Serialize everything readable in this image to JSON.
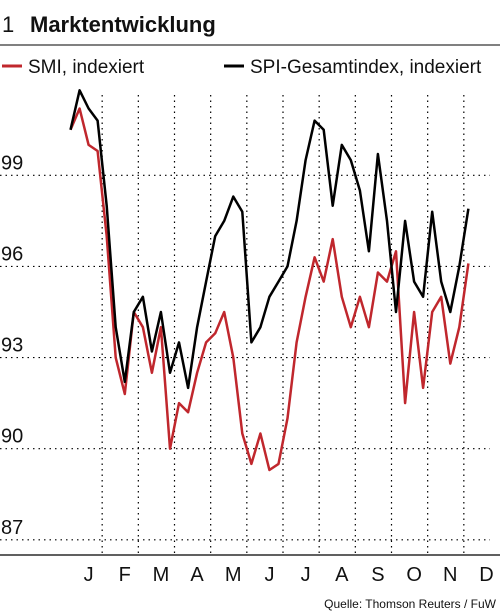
{
  "chart_data": {
    "type": "line",
    "number": "1",
    "title": "Marktentwicklung",
    "source": "Quelle: Thomson Reuters / FuW",
    "categories": [
      null,
      null,
      "J",
      null,
      null,
      null,
      "F",
      null,
      null,
      null,
      "M",
      null,
      null,
      null,
      "A",
      null,
      null,
      null,
      "M",
      null,
      null,
      null,
      "J",
      null,
      null,
      null,
      "J",
      null,
      null,
      null,
      "A",
      null,
      null,
      null,
      "S",
      null,
      null,
      null,
      "O",
      null,
      null,
      null,
      "N",
      null,
      null,
      null,
      "D",
      null
    ],
    "series": [
      {
        "name": "SMI, indexiert",
        "color": "#c0272d",
        "values": [
          100.5,
          101.2,
          100,
          99.8,
          97,
          93,
          91.8,
          94.5,
          94,
          92.5,
          94,
          90,
          91.5,
          91.2,
          92.5,
          93.5,
          93.8,
          94.5,
          93,
          90.5,
          89.5,
          90.5,
          89.3,
          89.5,
          91,
          93.5,
          95,
          96.3,
          95.5,
          96.9,
          95,
          94,
          95,
          94,
          95.8,
          95.5,
          96.5,
          91.5,
          94.5,
          92,
          94.5,
          95,
          92.8,
          94,
          96.1,
          null,
          null,
          null
        ]
      },
      {
        "name": "SPI-Gesamtindex, indexiert",
        "color": "#000000",
        "values": [
          100.5,
          101.8,
          101.2,
          100.8,
          98,
          94,
          92.2,
          94.5,
          95,
          93.2,
          94.5,
          92.5,
          93.5,
          92,
          94,
          95.5,
          97,
          97.5,
          98.3,
          97.8,
          93.5,
          94,
          95,
          95.5,
          96,
          97.5,
          99.5,
          100.8,
          100.5,
          98,
          100,
          99.5,
          98.5,
          96.5,
          99.7,
          97.5,
          94.5,
          97.5,
          95.5,
          95,
          97.8,
          95.5,
          94.5,
          96,
          97.9,
          null,
          null,
          null
        ]
      }
    ],
    "ylim": [
      86.5,
      102.5
    ],
    "yticks": [
      87,
      90,
      93,
      96,
      99
    ],
    "grid": true
  }
}
